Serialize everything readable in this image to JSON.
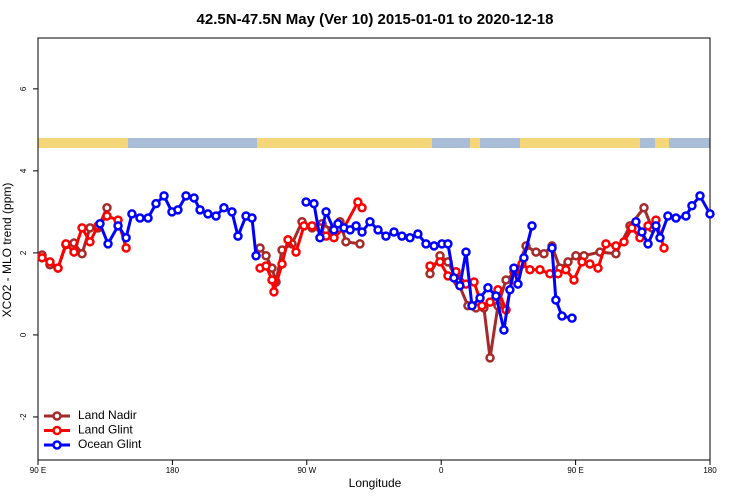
{
  "chart_data": {
    "type": "line",
    "title": "42.5N-47.5N May (Ver 10)   2015-01-01 to 2020-12-18",
    "xlabel": "Longitude",
    "ylabel": "XCO2 - MLO trend (ppm)",
    "xlim": [
      90,
      540
    ],
    "ylim": [
      -3.05,
      7.24
    ],
    "xticks": [
      {
        "value": 90,
        "label": "90 E"
      },
      180,
      {
        "value": 270,
        "label": "90 W"
      },
      {
        "value": 360,
        "label": "0"
      },
      {
        "value": 450,
        "label": "90 E"
      },
      {
        "value": 540,
        "label": "180"
      }
    ],
    "yticks": [
      -2,
      0,
      2,
      4,
      6
    ],
    "legend": "bottom-left",
    "series": [
      {
        "name": "Land Nadir",
        "color": "#a52a2a",
        "x": [
          92.7,
          98.0,
          103.4,
          108.7,
          114.1,
          119.5,
          124.8,
          130.2,
          136.2,
          null,
          238.7,
          242.7,
          246.7,
          249.4,
          253.4,
          260.1,
          266.8,
          273.5,
          280.2,
          286.9,
          292.2,
          296.2,
          305.6,
          null,
          352.5,
          359.2,
          364.5,
          371.2,
          377.9,
          383.3,
          388.6,
          392.7,
          398.0,
          403.4,
          410.1,
          416.8,
          423.5,
          428.8,
          434.2,
          439.5,
          444.9,
          450.2,
          455.6,
          466.3,
          477.0,
          486.4,
          495.8,
          501.1
        ],
        "values": [
          1.95,
          1.71,
          1.63,
          2.2,
          2.24,
          1.98,
          2.61,
          2.61,
          3.1,
          null,
          2.12,
          1.93,
          1.63,
          1.29,
          2.07,
          2.22,
          2.76,
          2.61,
          2.71,
          2.56,
          2.76,
          2.27,
          2.22,
          null,
          1.49,
          1.93,
          1.78,
          1.29,
          0.71,
          0.66,
          0.66,
          -0.56,
          0.71,
          1.34,
          1.54,
          2.17,
          2.02,
          1.98,
          2.17,
          1.63,
          1.78,
          1.93,
          1.93,
          2.02,
          1.98,
          2.66,
          3.1,
          2.61
        ]
      },
      {
        "name": "Land Glint",
        "color": "#ff0000",
        "x": [
          92.7,
          98.0,
          103.4,
          108.7,
          114.1,
          119.5,
          124.8,
          130.2,
          136.2,
          143.6,
          149.0,
          null,
          238.7,
          242.7,
          246.7,
          248.0,
          253.4,
          257.4,
          262.8,
          268.1,
          273.5,
          278.8,
          282.9,
          288.2,
          294.9,
          304.2,
          307.0,
          null,
          352.5,
          359.2,
          364.5,
          369.9,
          376.6,
          382.0,
          387.3,
          392.7,
          398.0,
          403.4,
          408.7,
          414.1,
          419.4,
          426.1,
          432.8,
          438.2,
          443.5,
          448.9,
          454.3,
          459.6,
          465.0,
          470.3,
          477.0,
          482.4,
          487.7,
          493.1,
          498.5,
          503.8,
          509.2
        ],
        "values": [
          1.88,
          1.78,
          1.63,
          2.22,
          2.02,
          2.61,
          2.27,
          2.66,
          2.9,
          2.8,
          2.12,
          null,
          1.63,
          1.68,
          1.34,
          1.05,
          1.73,
          2.32,
          2.02,
          2.66,
          2.66,
          2.61,
          2.41,
          2.37,
          2.61,
          3.24,
          3.1,
          null,
          1.68,
          1.78,
          1.44,
          1.54,
          1.24,
          1.29,
          0.71,
          0.8,
          1.1,
          0.61,
          1.54,
          1.73,
          1.59,
          1.59,
          1.49,
          1.49,
          1.59,
          1.34,
          1.78,
          1.73,
          1.63,
          2.22,
          2.17,
          2.27,
          2.61,
          2.37,
          2.66,
          2.8,
          2.12
        ]
      },
      {
        "name": "Ocean Glint",
        "color": "#0000ff",
        "x": [
          131.5,
          136.9,
          143.6,
          149.0,
          152.9,
          158.3,
          163.7,
          169.0,
          174.4,
          179.7,
          183.7,
          189.1,
          194.5,
          198.5,
          203.8,
          209.2,
          214.5,
          219.9,
          223.9,
          229.3,
          233.3,
          236.0,
          null,
          269.5,
          274.8,
          278.8,
          282.9,
          288.2,
          290.9,
          294.9,
          299.0,
          303.0,
          307.0,
          312.3,
          317.7,
          323.0,
          328.4,
          333.7,
          339.1,
          344.4,
          349.8,
          355.2,
          360.5,
          364.5,
          368.5,
          372.5,
          376.6,
          380.6,
          386.0,
          391.3,
          396.7,
          402.0,
          406.0,
          408.7,
          411.4,
          415.4,
          420.8,
          null,
          434.2,
          436.8,
          440.9,
          447.6,
          null,
          490.4,
          494.4,
          498.5,
          503.8,
          506.5,
          511.8,
          517.2,
          523.9,
          527.9,
          533.3,
          540.0
        ],
        "values": [
          2.71,
          2.22,
          2.66,
          2.37,
          2.95,
          2.85,
          2.85,
          3.2,
          3.39,
          3.0,
          3.05,
          3.39,
          3.34,
          3.05,
          2.95,
          2.9,
          3.1,
          3.0,
          2.41,
          2.9,
          2.85,
          1.93,
          null,
          3.24,
          3.2,
          2.37,
          3.0,
          2.56,
          2.71,
          2.61,
          2.56,
          2.66,
          2.51,
          2.76,
          2.56,
          2.41,
          2.51,
          2.41,
          2.37,
          2.46,
          2.22,
          2.17,
          2.22,
          2.22,
          1.39,
          1.2,
          2.02,
          0.71,
          0.9,
          1.15,
          0.95,
          0.12,
          1.1,
          1.63,
          1.24,
          1.88,
          2.66,
          null,
          2.12,
          0.85,
          0.46,
          0.41,
          null,
          2.76,
          2.51,
          2.22,
          2.66,
          2.37,
          2.9,
          2.85,
          2.9,
          3.15,
          3.39,
          2.95
        ]
      }
    ]
  }
}
